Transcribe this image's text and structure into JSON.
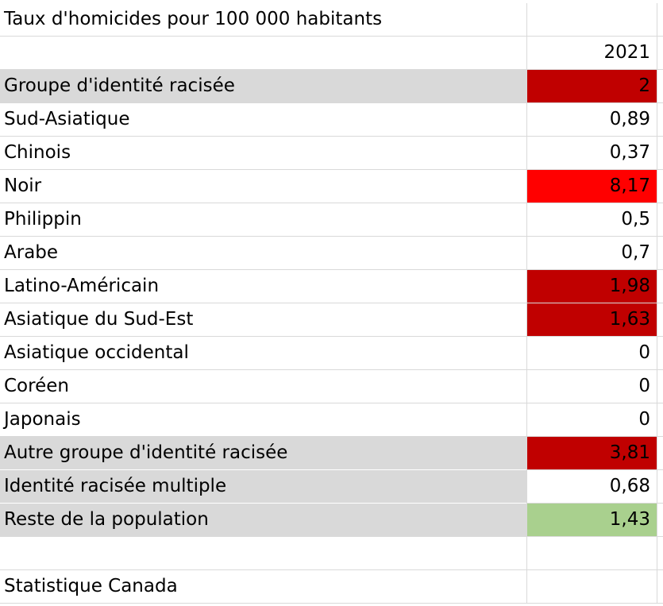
{
  "sheet": {
    "title": "Taux d'homicides pour 100 000 habitants",
    "year_header": "2021",
    "source": "Statistique Canada",
    "colors": {
      "highlight_grey": "#d9d9d9",
      "dark_red": "#c00000",
      "red": "#ff0000",
      "green": "#a9d08e"
    },
    "rows": [
      {
        "label": "Groupe d'identité racisée",
        "value": "2",
        "label_fill": "grey",
        "value_fill": "darkred"
      },
      {
        "label": "Sud-Asiatique",
        "value": "0,89",
        "label_fill": "none",
        "value_fill": "white"
      },
      {
        "label": "Chinois",
        "value": "0,37",
        "label_fill": "none",
        "value_fill": "white"
      },
      {
        "label": "Noir",
        "value": "8,17",
        "label_fill": "none",
        "value_fill": "red"
      },
      {
        "label": "Philippin",
        "value": "0,5",
        "label_fill": "none",
        "value_fill": "white"
      },
      {
        "label": "Arabe",
        "value": "0,7",
        "label_fill": "none",
        "value_fill": "white"
      },
      {
        "label": "Latino-Américain",
        "value": "1,98",
        "label_fill": "none",
        "value_fill": "darkred"
      },
      {
        "label": "Asiatique du Sud-Est",
        "value": "1,63",
        "label_fill": "none",
        "value_fill": "darkred"
      },
      {
        "label": "Asiatique occidental",
        "value": "0",
        "label_fill": "none",
        "value_fill": "white"
      },
      {
        "label": "Coréen",
        "value": "0",
        "label_fill": "none",
        "value_fill": "white"
      },
      {
        "label": "Japonais",
        "value": "0",
        "label_fill": "none",
        "value_fill": "white"
      },
      {
        "label": "Autre groupe d'identité racisée",
        "value": "3,81",
        "label_fill": "grey",
        "value_fill": "darkred"
      },
      {
        "label": "Identité racisée multiple",
        "value": "0,68",
        "label_fill": "grey",
        "value_fill": "white"
      },
      {
        "label": "Reste de la population",
        "value": "1,43",
        "label_fill": "grey",
        "value_fill": "green"
      }
    ]
  }
}
